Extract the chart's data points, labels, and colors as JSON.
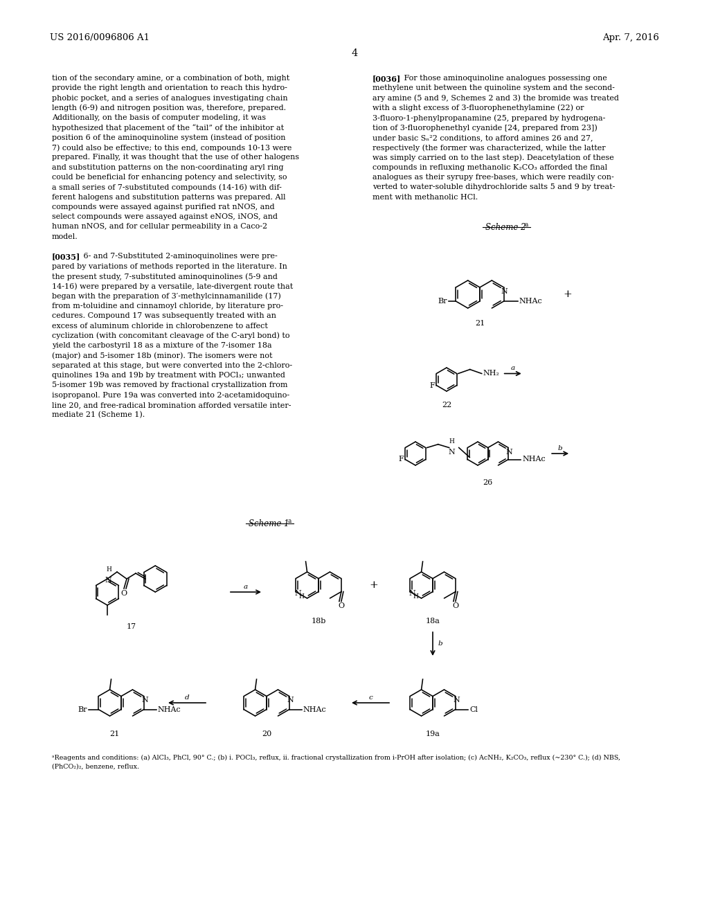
{
  "bg": "#ffffff",
  "header_left": "US 2016/0096806 A1",
  "header_right": "Apr. 7, 2016",
  "page_num": "4",
  "footnote": "aReagents and conditions: (a) AlCl3, PhCl, 90° C.; (b) i. POCl3, reflux, ii. fractional crystallization from i-PrOH after isolation; (c) AcNH2, K2CO3, reflux (~230° C.); (d) NBS, (PhCO2)2, benzene, reflux."
}
